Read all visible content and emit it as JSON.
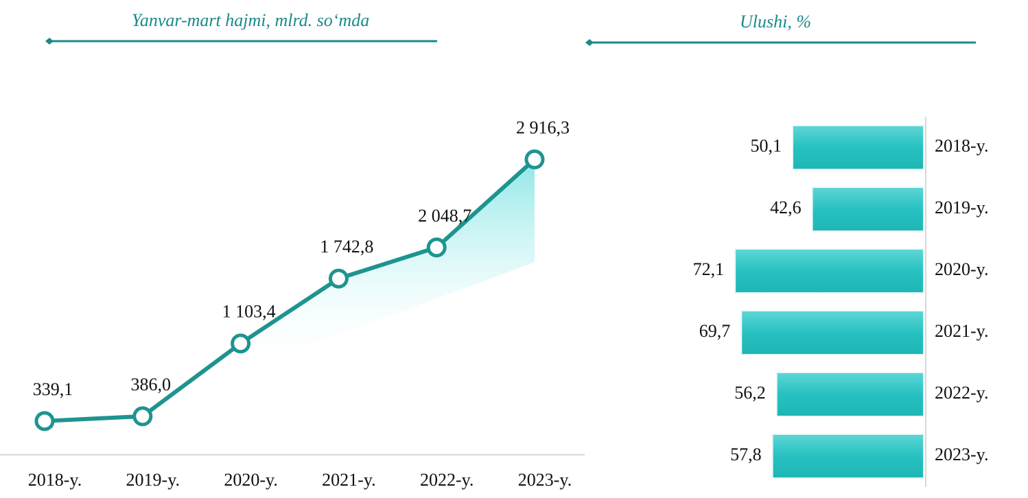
{
  "chart_data": [
    {
      "type": "line",
      "title": "Yanvar-mart hajmi, mlrd. so‘mda",
      "categories": [
        "2018-y.",
        "2019-y.",
        "2020-y.",
        "2021-y.",
        "2022-y.",
        "2023-y."
      ],
      "values": [
        339.1,
        386.0,
        1103.4,
        1742.8,
        2048.7,
        2916.3
      ],
      "value_labels": [
        "339,1",
        "386,0",
        "1 103,4",
        "1 742,8",
        "2 048,7",
        "2 916,3"
      ],
      "color": "#1e9490",
      "ylim": [
        0,
        3000
      ]
    },
    {
      "type": "hbar",
      "title": "Ulushi, %",
      "categories": [
        "2018-y.",
        "2019-y.",
        "2020-y.",
        "2021-y.",
        "2022-y.",
        "2023-y."
      ],
      "values": [
        50.1,
        42.6,
        72.1,
        69.7,
        56.2,
        57.8
      ],
      "value_labels": [
        "50,1",
        "42,6",
        "72,1",
        "69,7",
        "56,2",
        "57,8"
      ],
      "color": "#27c1c1",
      "xlim": [
        0,
        80
      ],
      "x_reversed": true
    }
  ]
}
